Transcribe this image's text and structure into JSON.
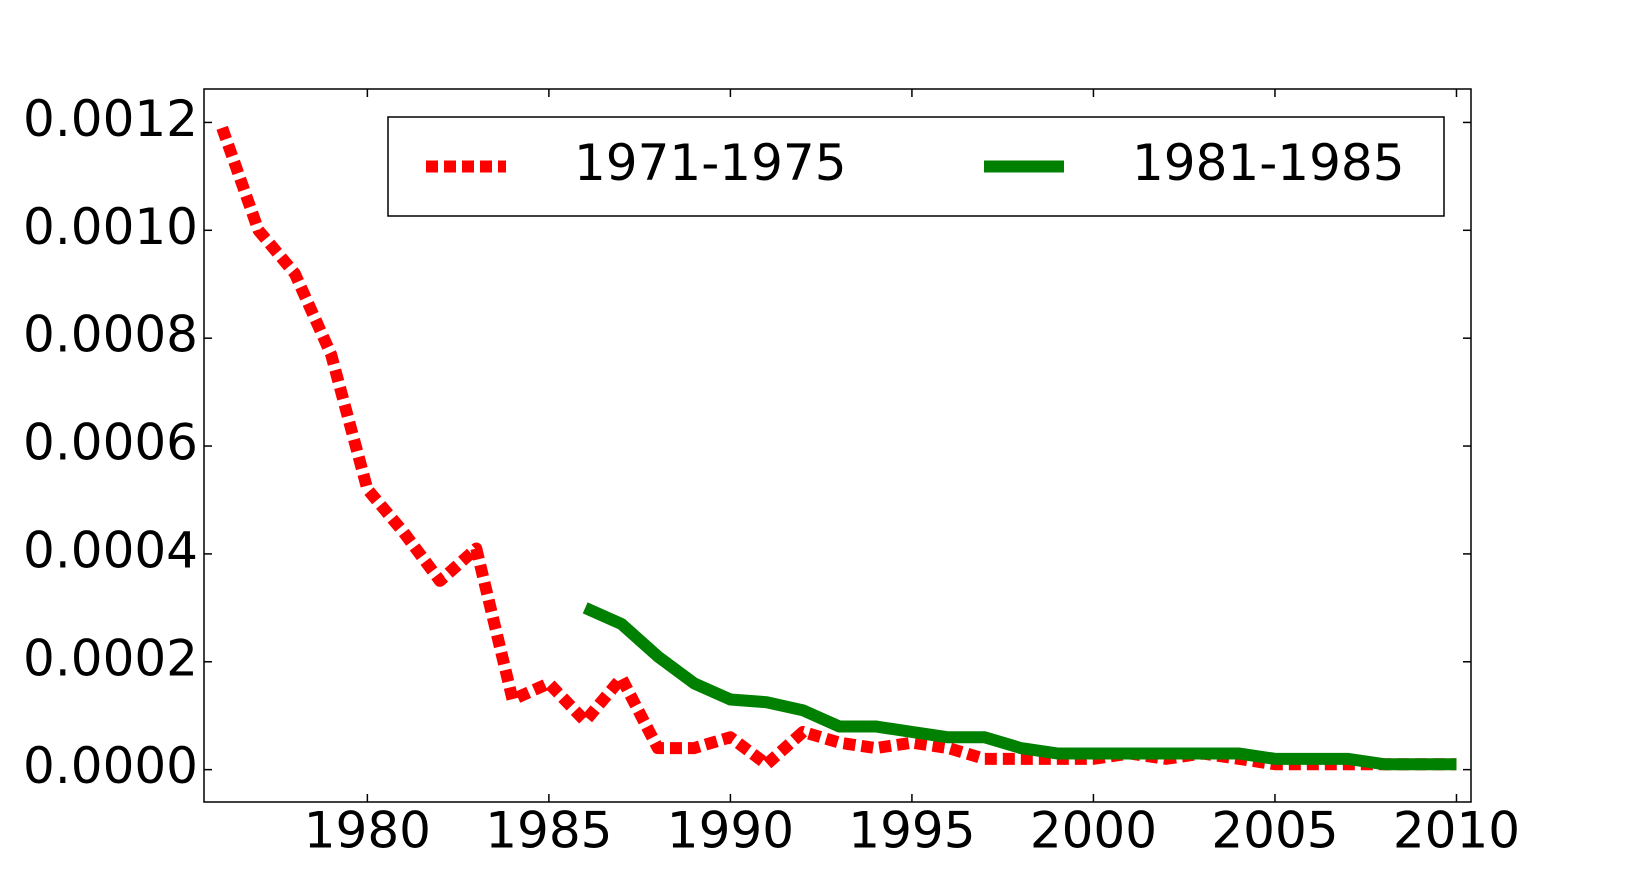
{
  "chart_data": {
    "type": "line",
    "x": [
      1976,
      1977,
      1978,
      1979,
      1980,
      1981,
      1982,
      1983,
      1984,
      1985,
      1986,
      1987,
      1988,
      1989,
      1990,
      1991,
      1992,
      1993,
      1994,
      1995,
      1996,
      1997,
      1998,
      1999,
      2000,
      2001,
      2002,
      2003,
      2004,
      2005,
      2006,
      2007,
      2008,
      2009,
      2010
    ],
    "series": [
      {
        "name": "1971-1975",
        "color": "#ff0000",
        "dash": "dotted",
        "values": [
          0.00119,
          0.001,
          0.00092,
          0.00077,
          0.00052,
          0.00044,
          0.00035,
          0.00041,
          0.00013,
          0.00016,
          9e-05,
          0.00017,
          4e-05,
          4e-05,
          6e-05,
          1e-05,
          7e-05,
          5e-05,
          4e-05,
          5e-05,
          4e-05,
          2e-05,
          2e-05,
          2e-05,
          2e-05,
          3e-05,
          2e-05,
          3e-05,
          2e-05,
          1e-05,
          1e-05,
          1e-05,
          1e-05,
          1e-05,
          1e-05
        ]
      },
      {
        "name": "1981-1985",
        "color": "#008000",
        "dash": "solid",
        "values": [
          null,
          null,
          null,
          null,
          null,
          null,
          null,
          null,
          null,
          null,
          0.0003,
          0.00027,
          0.00021,
          0.00016,
          0.00013,
          0.000125,
          0.00011,
          8e-05,
          8e-05,
          7e-05,
          6e-05,
          6e-05,
          4e-05,
          3e-05,
          3e-05,
          3e-05,
          3e-05,
          3e-05,
          3e-05,
          2e-05,
          2e-05,
          2e-05,
          1e-05,
          1e-05,
          1e-05
        ]
      }
    ],
    "xlim": [
      1975.5,
      2010.4
    ],
    "xticks": [
      1980,
      1985,
      1990,
      1995,
      2000,
      2005,
      2010
    ],
    "ylim": [
      -6e-05,
      0.001262
    ],
    "yticks": [
      {
        "value": 0,
        "label": "0.0000"
      },
      {
        "value": 0.0002,
        "label": "0.0002"
      },
      {
        "value": 0.0004,
        "label": "0.0004"
      },
      {
        "value": 0.0006,
        "label": "0.0006"
      },
      {
        "value": 0.0008,
        "label": "0.0008"
      },
      {
        "value": 0.001,
        "label": "0.0010"
      },
      {
        "value": 0.0012,
        "label": "0.0012"
      }
    ],
    "legend": "top-right",
    "grid": false
  }
}
